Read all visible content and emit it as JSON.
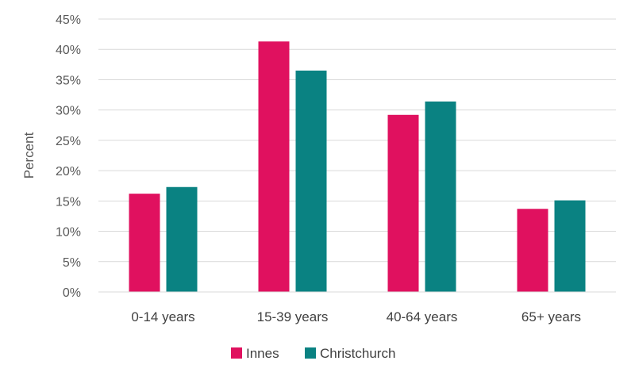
{
  "chart_data": {
    "type": "bar",
    "categories": [
      "0-14 years",
      "15-39 years",
      "40-64 years",
      "65+ years"
    ],
    "series": [
      {
        "name": "Innes",
        "values": [
          16.2,
          41.3,
          29.2,
          13.7
        ],
        "color": "#E0115F"
      },
      {
        "name": "Christchurch",
        "values": [
          17.3,
          36.5,
          31.4,
          15.1
        ],
        "color": "#0A8282"
      }
    ],
    "ylabel": "Percent",
    "ylim": [
      0,
      45
    ],
    "ytick_step": 5,
    "ytick_format": "percent",
    "grid": true,
    "legend_position": "bottom-center"
  }
}
